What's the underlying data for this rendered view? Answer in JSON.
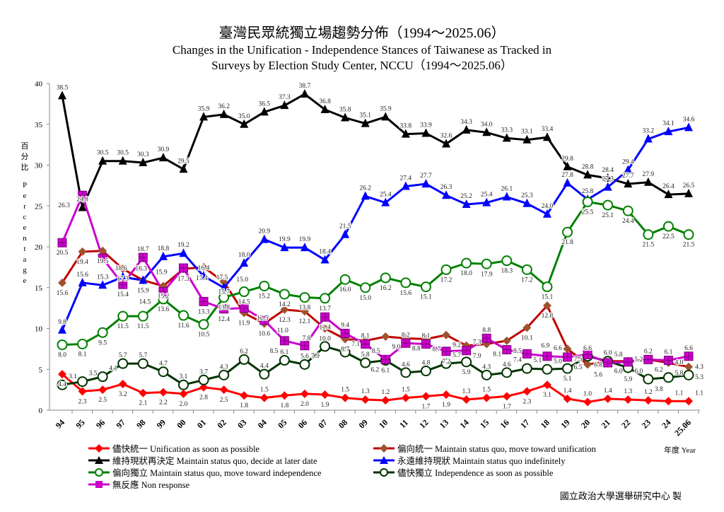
{
  "chart_data": {
    "type": "line",
    "title": "臺灣民眾統獨立場趨勢分佈（1994～2025.06）",
    "subtitle": "Changes in the Unification - Independence Stances of Taiwanese as Tracked in Surveys by Election Study Center, NCCU（1994～2025.06）",
    "ylabel": "百分比 Percentage",
    "xlabel": "年度 Year",
    "ylim": [
      0,
      40
    ],
    "yticks": [
      0,
      5,
      10,
      15,
      20,
      25,
      30,
      35,
      40
    ],
    "grid": false,
    "legend": "bottom",
    "categories": [
      "94",
      "95",
      "96",
      "97",
      "98",
      "99",
      "00",
      "01",
      "02",
      "03",
      "04",
      "05",
      "06",
      "07",
      "08",
      "09",
      "10",
      "11",
      "12",
      "13",
      "14",
      "15",
      "16",
      "17",
      "18",
      "19",
      "20",
      "21",
      "22",
      "23",
      "24",
      "25.06"
    ],
    "series": [
      {
        "name": "儘快統一 Unification as soon as possible",
        "color": "#ff0000",
        "marker": "diamond",
        "values": [
          4.4,
          2.3,
          2.5,
          3.2,
          2.1,
          2.2,
          2.0,
          2.8,
          2.5,
          1.8,
          1.5,
          1.8,
          2.0,
          1.9,
          1.5,
          1.3,
          1.2,
          1.5,
          1.7,
          1.9,
          1.3,
          1.5,
          1.7,
          2.3,
          3.1,
          1.4,
          1.0,
          1.4,
          1.3,
          1.2,
          1.1,
          1.1
        ]
      },
      {
        "name": "偏向統一 Maintain status quo, move toward unification",
        "color": "#c00000",
        "marker": "diamond-brown",
        "values": [
          15.6,
          19.4,
          19.5,
          17.3,
          15.9,
          15.2,
          17.3,
          17.5,
          15.7,
          11.9,
          10.6,
          12.3,
          12.1,
          10.0,
          8.7,
          8.5,
          9.0,
          8.8,
          8.7,
          9.2,
          7.9,
          8.1,
          8.5,
          10.1,
          12.8,
          7.5,
          5.6,
          6.0,
          6.0,
          6.2,
          5.8,
          5.3
        ]
      },
      {
        "name": "維持現狀再決定 Maintain status quo, decide at later date",
        "color": "#000000",
        "marker": "triangle",
        "values": [
          38.5,
          24.8,
          30.5,
          30.5,
          30.3,
          30.9,
          29.5,
          35.9,
          36.2,
          35.0,
          36.5,
          37.3,
          38.7,
          36.8,
          35.8,
          35.1,
          35.9,
          33.8,
          33.9,
          32.6,
          34.3,
          34.0,
          33.3,
          33.1,
          33.4,
          29.8,
          28.8,
          28.4,
          27.7,
          27.9,
          26.4,
          26.5
        ]
      },
      {
        "name": "永遠維持現狀 Maintain status quo indefinitely",
        "color": "#0000ff",
        "marker": "triangle",
        "values": [
          9.8,
          15.6,
          15.3,
          16.3,
          15.9,
          18.8,
          19.2,
          16.4,
          15.0,
          18.0,
          20.9,
          19.9,
          19.9,
          18.4,
          21.5,
          26.2,
          25.4,
          27.4,
          27.7,
          26.3,
          25.2,
          25.4,
          26.1,
          25.3,
          24.0,
          27.8,
          25.8,
          27.3,
          29.4,
          33.2,
          34.1,
          34.6
        ]
      },
      {
        "name": "偏向獨立 Maintain status quo, move toward independence",
        "color": "#008000",
        "marker": "circle",
        "values": [
          8.0,
          8.1,
          9.5,
          11.5,
          11.5,
          13.6,
          11.6,
          10.5,
          13.8,
          14.5,
          15.2,
          14.2,
          13.8,
          13.7,
          16.0,
          15.0,
          16.2,
          15.6,
          15.1,
          17.2,
          18.0,
          17.9,
          18.3,
          17.2,
          15.1,
          21.8,
          25.5,
          25.1,
          24.4,
          21.5,
          22.5,
          21.5
        ]
      },
      {
        "name": "儘快獨立 Independence as soon as possible",
        "color": "#003300",
        "marker": "circle",
        "values": [
          3.1,
          3.5,
          4.1,
          5.7,
          5.7,
          4.7,
          3.1,
          3.7,
          4.3,
          6.2,
          4.4,
          6.1,
          5.6,
          7.8,
          7.1,
          5.8,
          6.1,
          4.6,
          4.8,
          5.7,
          5.9,
          4.3,
          4.6,
          5.1,
          5.0,
          5.1,
          6.6,
          6.0,
          5.2,
          3.8,
          4.0,
          4.3
        ]
      },
      {
        "name": "無反應 Non response",
        "color": "#cc00cc",
        "marker": "square",
        "values": [
          20.5,
          26.3,
          18.6,
          15.4,
          18.7,
          14.5,
          17.4,
          13.3,
          12.4,
          12.5,
          11.0,
          8.5,
          7.9,
          11.4,
          9.4,
          8.1,
          6.2,
          8.2,
          8.1,
          7.2,
          7.3,
          8.8,
          7.4,
          6.9,
          6.6,
          6.5,
          6.8,
          5.8,
          5.9,
          6.2,
          6.1,
          6.6
        ]
      }
    ]
  },
  "ylabel_chars": [
    "百",
    "分",
    "比",
    "P",
    "e",
    "r",
    "c",
    "e",
    "n",
    "t",
    "a",
    "g",
    "e"
  ],
  "footer": "國立政治大學選舉研究中心 製"
}
